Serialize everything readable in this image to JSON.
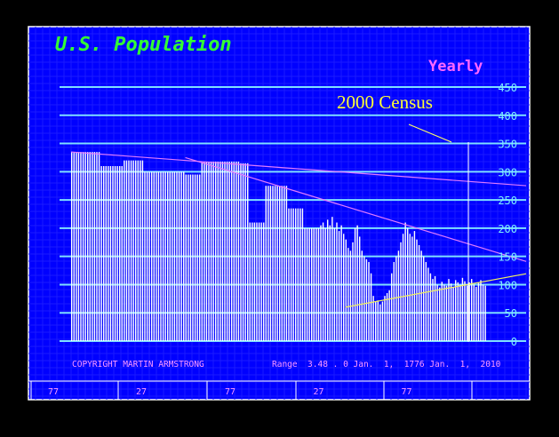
{
  "chart_data": {
    "type": "bar",
    "title": "U.S. Population",
    "period_label": "Yearly",
    "annotation": "2000 Census",
    "copyright": "COPYRIGHT MARTIN ARMSTRONG",
    "range_text": "Range  3.48 . 0 Jan.  1,  1776 Jan.  1,  2010",
    "ylim": [
      0,
      450
    ],
    "y_ticks": [
      "450",
      "400",
      "350",
      "300",
      "250",
      "200",
      "150",
      "100",
      "50",
      "0"
    ],
    "x_tick_labels": [
      "77",
      "27",
      "77",
      "27",
      "77"
    ],
    "bar_color": "#ffffff",
    "series": [
      {
        "values": [
          335,
          335,
          335,
          335,
          335,
          335,
          335,
          335,
          335,
          335,
          335,
          335,
          335,
          310,
          310,
          310,
          310,
          310,
          310,
          310,
          310,
          310,
          310,
          320,
          320,
          320,
          320,
          320,
          320,
          320,
          320,
          320,
          300,
          300,
          300,
          300,
          300,
          300,
          300,
          300,
          300,
          300,
          300,
          300,
          300,
          300,
          300,
          300,
          300,
          300,
          295,
          295,
          295,
          295,
          295,
          295,
          295,
          318,
          318,
          318,
          318,
          318,
          318,
          318,
          318,
          318,
          318,
          318,
          318,
          318,
          318,
          318,
          318,
          318,
          315,
          315,
          315,
          315,
          210,
          210,
          210,
          210,
          210,
          210,
          210,
          275,
          275,
          275,
          275,
          275,
          275,
          275,
          275,
          275,
          275,
          235,
          235,
          235,
          235,
          235,
          235,
          235,
          200,
          200,
          200,
          200,
          200,
          200,
          200,
          205,
          210,
          200,
          215,
          205,
          220,
          200,
          210,
          195,
          205,
          190,
          180,
          165,
          160,
          175,
          200,
          205,
          185,
          160,
          150,
          145,
          140,
          120,
          80,
          70,
          72,
          65,
          70,
          80,
          85,
          90,
          120,
          140,
          150,
          160,
          175,
          190,
          210,
          200,
          190,
          185,
          195,
          180,
          170,
          160,
          150,
          140,
          130,
          120,
          110,
          115,
          100,
          95,
          105,
          100,
          98,
          110,
          102,
          96,
          108,
          104,
          100,
          112,
          106,
          98,
          104,
          110,
          100,
          96,
          104,
          108,
          100,
          98
        ]
      }
    ],
    "trendlines": [
      {
        "from": [
          0,
          335
        ],
        "to": [
          200,
          275
        ],
        "color": "#e07aff"
      },
      {
        "from": [
          50,
          325
        ],
        "to": [
          200,
          140
        ],
        "color": "#e07aff"
      },
      {
        "from": [
          120,
          60
        ],
        "to": [
          200,
          120
        ],
        "color": "#f0f060"
      }
    ],
    "grid": true
  },
  "colors": {
    "background": "#0000ff",
    "grid_minor": "#1a1aff",
    "grid_major": "#7fdfff",
    "title": "#33ff33",
    "period": "#ff66ff",
    "annotation": "#ffff33",
    "footer_text": "#ff99ff"
  }
}
